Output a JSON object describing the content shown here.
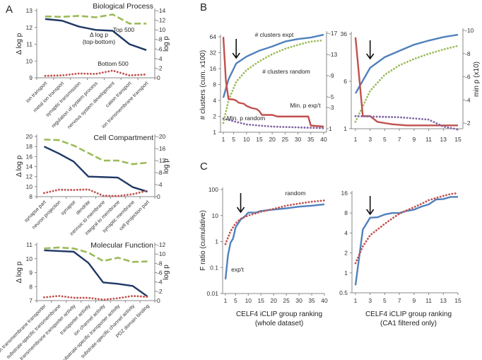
{
  "panel_letters": [
    "A",
    "B",
    "C"
  ],
  "chart_data": [
    {
      "type": "line",
      "panel": "A",
      "title": "Biological Process",
      "ylabel": "Δ log p",
      "ylabel_right": "log p",
      "categories": [
        "ion transport",
        "metal ion transport",
        "synaptic transmission",
        "regulation of system process",
        "nervous system development",
        "cation transport",
        "ion transmembrane transport"
      ],
      "ylim": [
        9,
        13
      ],
      "ylim_right": [
        0,
        -14
      ],
      "yticks": [
        "9",
        "10",
        "11",
        "12",
        "13"
      ],
      "yticks_right": [
        "0",
        "-2",
        "-4",
        "-6",
        "-8",
        "-10",
        "-12",
        "-14"
      ],
      "series": [
        {
          "label_lines": [
            "Δ log p",
            "(top-bottom)"
          ],
          "axis": "left",
          "style": "solid",
          "color": "#1f3864",
          "values": [
            12.5,
            12.4,
            12.05,
            11.85,
            11.8,
            11.0,
            10.65
          ]
        },
        {
          "label_lines": [
            "Top 500"
          ],
          "axis": "right",
          "style": "dashed",
          "color": "#9bbb59",
          "values": [
            -12.8,
            -12.7,
            -12.9,
            -12.6,
            -13.2,
            -11.3,
            -11.3
          ]
        },
        {
          "label_lines": [
            "Bottom 500"
          ],
          "axis": "right",
          "style": "dotted",
          "color": "#c0504d",
          "values": [
            -0.4,
            -0.5,
            -0.9,
            -0.8,
            -1.5,
            -0.5,
            -0.7
          ]
        }
      ]
    },
    {
      "type": "line",
      "panel": "A",
      "title": "Cell Compartment",
      "ylabel": "Δ log p",
      "ylabel_right": "log p",
      "categories": [
        "synapse part",
        "neuron projection",
        "synapse",
        "dendrite",
        "intrinsic to membrane",
        "integral to membrane",
        "synaptic membrane",
        "cell projection part"
      ],
      "ylim": [
        8,
        20
      ],
      "ylim_right": [
        0,
        -20
      ],
      "yticks": [
        "8",
        "10",
        "12",
        "14",
        "16",
        "18",
        "20"
      ],
      "yticks_right": [
        "0",
        "-4",
        "-8",
        "-12",
        "-16",
        "-20"
      ],
      "series": [
        {
          "axis": "left",
          "style": "solid",
          "color": "#1f3864",
          "values": [
            18,
            16.6,
            15,
            12,
            11.9,
            11.8,
            9.9,
            9
          ]
        },
        {
          "axis": "right",
          "style": "dashed",
          "color": "#9bbb59",
          "values": [
            -19,
            -18.8,
            -17,
            -14.5,
            -12,
            -12,
            -10.8,
            -11.3
          ]
        },
        {
          "axis": "right",
          "style": "dotted",
          "color": "#c0504d",
          "values": [
            -1.2,
            -2.3,
            -2.2,
            -2.4,
            -0.3,
            -0.2,
            -0.8,
            -2.0
          ]
        }
      ]
    },
    {
      "type": "line",
      "panel": "A",
      "title": "Molecular Function",
      "ylabel": "Δ log p",
      "ylabel_right": "log p",
      "categories": [
        "ion transmembrane transporter",
        "substrate-specific transmembrane",
        "transmembrane transporter activity",
        "transporter activity",
        "ion channel activity",
        "substrate-specific transporter activity",
        "substrate-specific channel activity",
        "PDZ domain binding"
      ],
      "ylim": [
        7,
        11
      ],
      "ylim_right": [
        0,
        -12
      ],
      "yticks": [
        "7",
        "8",
        "9",
        "10",
        "11"
      ],
      "yticks_right": [
        "0",
        "-2",
        "-4",
        "-6",
        "-8",
        "-10",
        "-12"
      ],
      "series": [
        {
          "axis": "left",
          "style": "solid",
          "color": "#1f3864",
          "values": [
            10.6,
            10.55,
            10.5,
            9.7,
            8.3,
            8.2,
            8.05,
            7.3
          ]
        },
        {
          "axis": "right",
          "style": "dashed",
          "color": "#9bbb59",
          "values": [
            -11.2,
            -11.4,
            -11.2,
            -10.3,
            -8.5,
            -9.2,
            -8.3,
            -8.4
          ]
        },
        {
          "axis": "right",
          "style": "dotted",
          "color": "#c0504d",
          "values": [
            -0.7,
            -1.0,
            -0.6,
            -0.6,
            -0.2,
            -0.5,
            -1.0,
            -0.8
          ]
        }
      ]
    },
    {
      "type": "line",
      "panel": "B",
      "ylabel": "# clusters (cum. x100)",
      "xlim": [
        1,
        40
      ],
      "ylim": [
        1,
        64
      ],
      "yscale": "log",
      "ylim_right": [
        1,
        -17
      ],
      "xticks": [
        "1",
        "5",
        "10",
        "15",
        "20",
        "25",
        "30",
        "35",
        "40"
      ],
      "yticks": [
        "1",
        "2",
        "4",
        "8",
        "16",
        "32",
        "64"
      ],
      "yticks_right": [
        "1",
        "-3",
        "-5",
        "-9",
        "-13",
        "-17"
      ],
      "arrow_x": 6,
      "series": [
        {
          "label_lines": [
            "# clusters expt"
          ],
          "axis": "left",
          "style": "solid",
          "color": "#4f81bd",
          "x": [
            1,
            3,
            6,
            10,
            15,
            20,
            25,
            30,
            35,
            40
          ],
          "y": [
            4.5,
            10,
            20,
            27,
            35,
            42,
            52,
            58,
            62,
            70
          ]
        },
        {
          "label_lines": [
            "# clusters random"
          ],
          "axis": "left",
          "style": "dotted",
          "color": "#9bbb59",
          "x": [
            1,
            3,
            6,
            10,
            15,
            20,
            25,
            30,
            35,
            40
          ],
          "y": [
            1.5,
            4,
            9,
            15,
            22,
            30,
            38,
            45,
            52,
            55
          ]
        },
        {
          "label_lines": [
            "Min. p exp't"
          ],
          "axis": "right",
          "style": "solid",
          "color": "#c0504d",
          "x": [
            1,
            2,
            3,
            5,
            6,
            7,
            9,
            10,
            12,
            14,
            15,
            16,
            20,
            22,
            34,
            35,
            40
          ],
          "y": [
            -16.3,
            -8,
            -4.6,
            -4.5,
            -4.3,
            -3.9,
            -3.7,
            -3.3,
            -2.9,
            -2.7,
            -2.3,
            -1.6,
            -1.6,
            -1.3,
            -1.3,
            0.4,
            0.6
          ]
        },
        {
          "label_lines": [
            "Min. p random"
          ],
          "axis": "right",
          "style": "dotted",
          "color": "#8064a2",
          "x": [
            1,
            10,
            20,
            40
          ],
          "y": [
            -0.9,
            0.2,
            0.6,
            0.9
          ]
        }
      ]
    },
    {
      "type": "line",
      "panel": "B",
      "ylabel_right": "min p (x10)",
      "xlim": [
        1,
        15
      ],
      "ylim": [
        1,
        36
      ],
      "yscale": "log",
      "ylim_right": [
        -2,
        -10
      ],
      "xticks": [
        "1",
        "3",
        "5",
        "7",
        "9",
        "11",
        "13",
        "15"
      ],
      "yticks": [
        "1",
        "6",
        "36"
      ],
      "yticks_right": [
        "-2",
        "-4",
        "-6",
        "-8",
        "-10"
      ],
      "arrow_x": 3,
      "series": [
        {
          "axis": "left",
          "style": "solid",
          "color": "#4f81bd",
          "x": [
            1,
            3,
            5,
            7,
            9,
            11,
            13,
            15
          ],
          "y": [
            3.8,
            10,
            15,
            19,
            24,
            28,
            32,
            35
          ]
        },
        {
          "axis": "left",
          "style": "dotted",
          "color": "#9bbb59",
          "x": [
            1,
            3,
            5,
            7,
            9,
            11,
            13,
            15
          ],
          "y": [
            1.3,
            4.2,
            7.7,
            11,
            14,
            17,
            20,
            23
          ]
        },
        {
          "axis": "right",
          "style": "solid",
          "color": "#c0504d",
          "x": [
            1,
            2,
            3,
            4,
            5,
            6,
            8,
            15
          ],
          "y": [
            -9.4,
            -2.6,
            -2.6,
            -2.1,
            -2.0,
            -1.9,
            -1.8,
            -1.8
          ]
        },
        {
          "axis": "right",
          "style": "dotted",
          "color": "#8064a2",
          "x": [
            1,
            7,
            11,
            13,
            15
          ],
          "y": [
            -2.6,
            -2.5,
            -2.3,
            -1.7,
            -1.45
          ]
        }
      ]
    },
    {
      "type": "line",
      "panel": "C",
      "ylabel": "F ratio (cumulative)",
      "xlabel_lines": [
        "CELF4 iCLIP group ranking",
        "(whole dataset)"
      ],
      "xlim": [
        1,
        40
      ],
      "ylim": [
        0.01,
        100
      ],
      "yscale": "log",
      "xticks": [
        "1",
        "5",
        "10",
        "15",
        "20",
        "25",
        "30",
        "35",
        "40"
      ],
      "yticks": [
        "0.01",
        "0.1",
        "1",
        "10",
        "100"
      ],
      "arrow_x": 7,
      "series": [
        {
          "label_lines": [
            "exp't"
          ],
          "axis": "left",
          "style": "solid",
          "color": "#4f81bd",
          "x": [
            1,
            2,
            3,
            4,
            5,
            7,
            9,
            10,
            13,
            15,
            20,
            25,
            30,
            35,
            40
          ],
          "y": [
            0.035,
            0.3,
            0.9,
            1.3,
            3.5,
            7,
            10,
            13,
            13,
            15,
            17,
            19,
            22,
            24,
            27
          ]
        },
        {
          "label_lines": [
            "random"
          ],
          "axis": "left",
          "style": "dotted",
          "color": "#c0504d",
          "x": [
            1,
            3,
            5,
            7,
            10,
            15,
            20,
            25,
            30,
            35,
            40
          ],
          "y": [
            0.8,
            2.5,
            5,
            7.5,
            10,
            14,
            18,
            24,
            29,
            34,
            38
          ]
        }
      ]
    },
    {
      "type": "line",
      "panel": "C",
      "xlabel_lines": [
        "CELF4 iCLIP group ranking",
        "(CA1 filtered only)"
      ],
      "xlim": [
        1,
        15
      ],
      "ylim": [
        0.5,
        16
      ],
      "yscale": "log",
      "xticks": [
        "1",
        "3",
        "5",
        "7",
        "9",
        "11",
        "13",
        "15"
      ],
      "yticks": [
        "0.5",
        "1",
        "2",
        "4",
        "8",
        "16"
      ],
      "arrow_x": 3,
      "series": [
        {
          "axis": "left",
          "style": "solid",
          "color": "#4f81bd",
          "x": [
            1,
            2,
            3,
            4,
            5,
            6,
            7,
            8,
            9,
            10,
            11,
            12,
            13,
            14,
            15
          ],
          "y": [
            0.65,
            4.5,
            6.8,
            6.9,
            7.6,
            8,
            8,
            8.6,
            9,
            10,
            10.8,
            12.8,
            13,
            14,
            14
          ]
        },
        {
          "axis": "left",
          "style": "dotted",
          "color": "#c0504d",
          "x": [
            1,
            2,
            3,
            4,
            5,
            6,
            7,
            8,
            9,
            10,
            11,
            12,
            13,
            14,
            15
          ],
          "y": [
            1.4,
            2.5,
            3.7,
            4.5,
            5.5,
            6.6,
            7.8,
            8.8,
            9.8,
            11,
            12.5,
            13.5,
            14.5,
            15.5,
            16
          ]
        }
      ]
    }
  ]
}
